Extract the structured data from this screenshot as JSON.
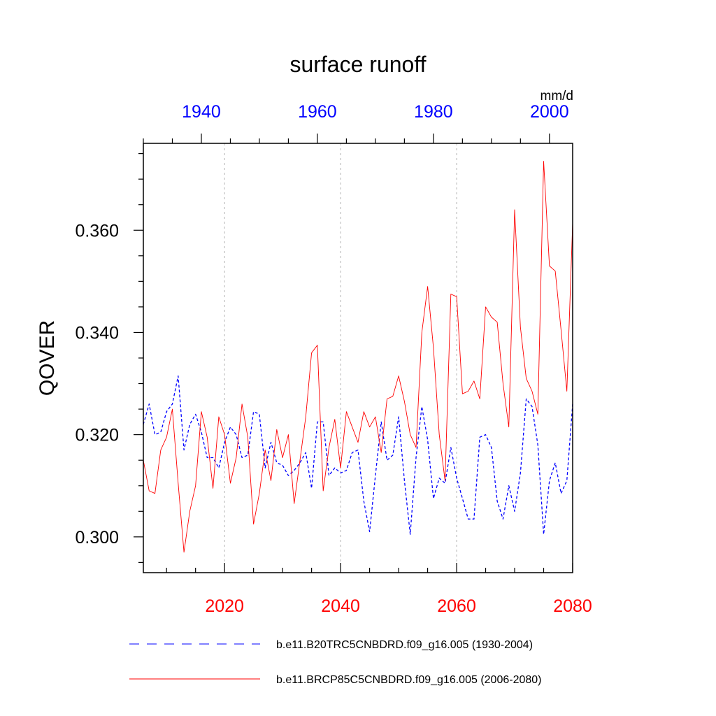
{
  "chart_data": {
    "type": "line",
    "title": "surface runoff",
    "ylabel": "QOVER",
    "units": "mm/d",
    "ylim": [
      0.293,
      0.377
    ],
    "yticks": [
      "0.300",
      "0.320",
      "0.340",
      "0.360"
    ],
    "grid": "vertical dotted lines at major bottom-axis ticks",
    "x_bottom": {
      "range": [
        2006,
        2080
      ],
      "ticks": [
        "2020",
        "2040",
        "2060",
        "2080"
      ],
      "color": "#ff0000"
    },
    "x_top": {
      "range": [
        1930,
        2004
      ],
      "ticks": [
        "1940",
        "1960",
        "1980",
        "2000"
      ],
      "color": "#0000ff"
    },
    "legend_position": "bottom",
    "series": [
      {
        "name": "b.e11.B20TRC5CNBDRD.f09_g16.005 (1930-2004)",
        "axis": "top",
        "color": "#0000ff",
        "dash": "dashed",
        "x_start": 1930,
        "values": [
          0.322,
          0.326,
          0.32,
          0.3205,
          0.3245,
          0.326,
          0.3315,
          0.317,
          0.322,
          0.324,
          0.3205,
          0.3155,
          0.3155,
          0.3135,
          0.3185,
          0.3215,
          0.32,
          0.3155,
          0.316,
          0.3245,
          0.324,
          0.3135,
          0.3185,
          0.3145,
          0.314,
          0.312,
          0.313,
          0.3145,
          0.3165,
          0.3095,
          0.3225,
          0.3225,
          0.312,
          0.3135,
          0.3125,
          0.313,
          0.3165,
          0.317,
          0.307,
          0.301,
          0.312,
          0.3225,
          0.315,
          0.316,
          0.3235,
          0.311,
          0.3005,
          0.3155,
          0.3255,
          0.319,
          0.3075,
          0.3115,
          0.3105,
          0.3175,
          0.3115,
          0.3075,
          0.3035,
          0.3035,
          0.3195,
          0.32,
          0.3175,
          0.307,
          0.3035,
          0.31,
          0.305,
          0.3125,
          0.327,
          0.3255,
          0.318,
          0.3005,
          0.311,
          0.3145,
          0.3085,
          0.311,
          0.326
        ]
      },
      {
        "name": "b.e11.BRCP85C5CNBDRD.f09_g16.005 (2006-2080)",
        "axis": "bottom",
        "color": "#ff0000",
        "dash": "solid",
        "x_start": 2006,
        "values": [
          0.315,
          0.309,
          0.3085,
          0.317,
          0.3195,
          0.325,
          0.3105,
          0.297,
          0.305,
          0.31,
          0.3245,
          0.3195,
          0.3095,
          0.3235,
          0.32,
          0.3105,
          0.3155,
          0.326,
          0.3195,
          0.3025,
          0.3085,
          0.317,
          0.311,
          0.321,
          0.3155,
          0.32,
          0.3065,
          0.315,
          0.3235,
          0.336,
          0.3375,
          0.309,
          0.3175,
          0.323,
          0.3135,
          0.3245,
          0.3215,
          0.3185,
          0.3245,
          0.3215,
          0.3235,
          0.3165,
          0.327,
          0.3275,
          0.3315,
          0.3265,
          0.32,
          0.3175,
          0.34,
          0.349,
          0.337,
          0.32,
          0.311,
          0.3475,
          0.347,
          0.328,
          0.3285,
          0.3305,
          0.327,
          0.345,
          0.343,
          0.342,
          0.33,
          0.3215,
          0.364,
          0.341,
          0.331,
          0.3285,
          0.324,
          0.3735,
          0.353,
          0.352,
          0.3405,
          0.3285,
          0.3615
        ]
      }
    ]
  }
}
